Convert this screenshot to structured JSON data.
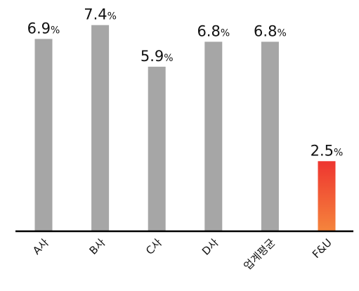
{
  "chart_data": {
    "type": "bar",
    "categories": [
      "A사",
      "B사",
      "C사",
      "D사",
      "업계평균",
      "F&U"
    ],
    "values": [
      6.9,
      7.4,
      5.9,
      6.8,
      6.8,
      2.5
    ],
    "value_labels": [
      "6.9",
      "7.4",
      "5.9",
      "6.8",
      "6.8",
      "2.5"
    ],
    "unit": "%",
    "title": "",
    "xlabel": "",
    "ylabel": "",
    "ylim": [
      0,
      8
    ],
    "grid": false,
    "legend": "none",
    "colors": {
      "default_bar": "#a6a6a6",
      "highlight_top": "#ee3530",
      "highlight_bottom": "#f5843c",
      "axis": "#000000"
    },
    "highlight_index": 5
  }
}
